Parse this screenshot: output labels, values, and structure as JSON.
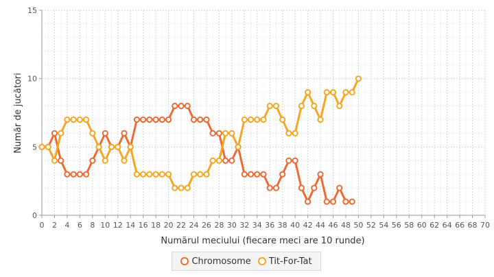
{
  "chart_data": {
    "type": "line",
    "xlabel": "Numărul meciului (fiecare meci are 10 runde)",
    "ylabel": "Număr de jucători",
    "xlim": [
      0,
      70
    ],
    "ylim": [
      0,
      15
    ],
    "x_ticks": [
      0,
      2,
      4,
      6,
      8,
      10,
      12,
      14,
      16,
      18,
      20,
      22,
      24,
      26,
      28,
      30,
      32,
      34,
      36,
      38,
      40,
      42,
      44,
      46,
      48,
      50,
      52,
      54,
      56,
      58,
      60,
      62,
      64,
      66,
      68,
      70
    ],
    "y_ticks": [
      0,
      5,
      10,
      15
    ],
    "grid": true,
    "legend_position": "bottom",
    "series": [
      {
        "name": "Chromosome",
        "color": "#ee6a34",
        "x": [
          0,
          1,
          2,
          3,
          4,
          5,
          6,
          7,
          8,
          9,
          10,
          11,
          12,
          13,
          14,
          15,
          16,
          17,
          18,
          19,
          20,
          21,
          22,
          23,
          24,
          25,
          26,
          27,
          28,
          29,
          30,
          31,
          32,
          33,
          34,
          35,
          36,
          37,
          38,
          39,
          40,
          41,
          42,
          43,
          44,
          45,
          46,
          47,
          48,
          49
        ],
        "y": [
          5,
          5,
          6,
          4,
          3,
          3,
          3,
          3,
          4,
          5,
          6,
          5,
          5,
          6,
          5,
          7,
          7,
          7,
          7,
          7,
          7,
          8,
          8,
          8,
          7,
          7,
          7,
          6,
          6,
          4,
          4,
          5,
          3,
          3,
          3,
          3,
          2,
          2,
          3,
          4,
          4,
          2,
          1,
          2,
          3,
          1,
          1,
          2,
          1,
          1
        ]
      },
      {
        "name": "Tit-For-Tat",
        "color": "#f5a623",
        "x": [
          0,
          1,
          2,
          3,
          4,
          5,
          6,
          7,
          8,
          9,
          10,
          11,
          12,
          13,
          14,
          15,
          16,
          17,
          18,
          19,
          20,
          21,
          22,
          23,
          24,
          25,
          26,
          27,
          28,
          29,
          30,
          31,
          32,
          33,
          34,
          35,
          36,
          37,
          38,
          39,
          40,
          41,
          42,
          43,
          44,
          45,
          46,
          47,
          48,
          49,
          50
        ],
        "y": [
          5,
          5,
          4,
          6,
          7,
          7,
          7,
          7,
          6,
          5,
          4,
          5,
          5,
          4,
          5,
          3,
          3,
          3,
          3,
          3,
          3,
          2,
          2,
          2,
          3,
          3,
          3,
          4,
          4,
          6,
          6,
          5,
          7,
          7,
          7,
          7,
          8,
          8,
          7,
          6,
          6,
          8,
          9,
          8,
          7,
          9,
          9,
          8,
          9,
          9,
          10
        ]
      }
    ]
  }
}
